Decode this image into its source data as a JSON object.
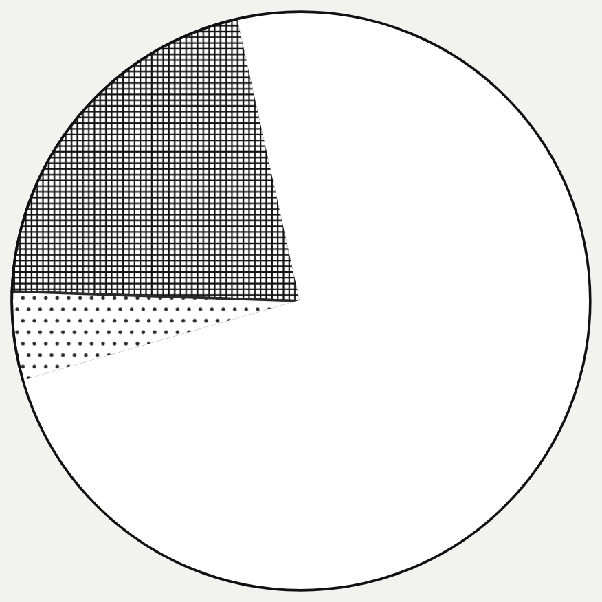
{
  "chart_data": {
    "type": "pie",
    "categories": [
      null,
      null,
      null
    ],
    "values": [
      21,
      5,
      74
    ],
    "colors": [
      "#111111",
      "#2a2a2a",
      "#ffffff"
    ]
  }
}
